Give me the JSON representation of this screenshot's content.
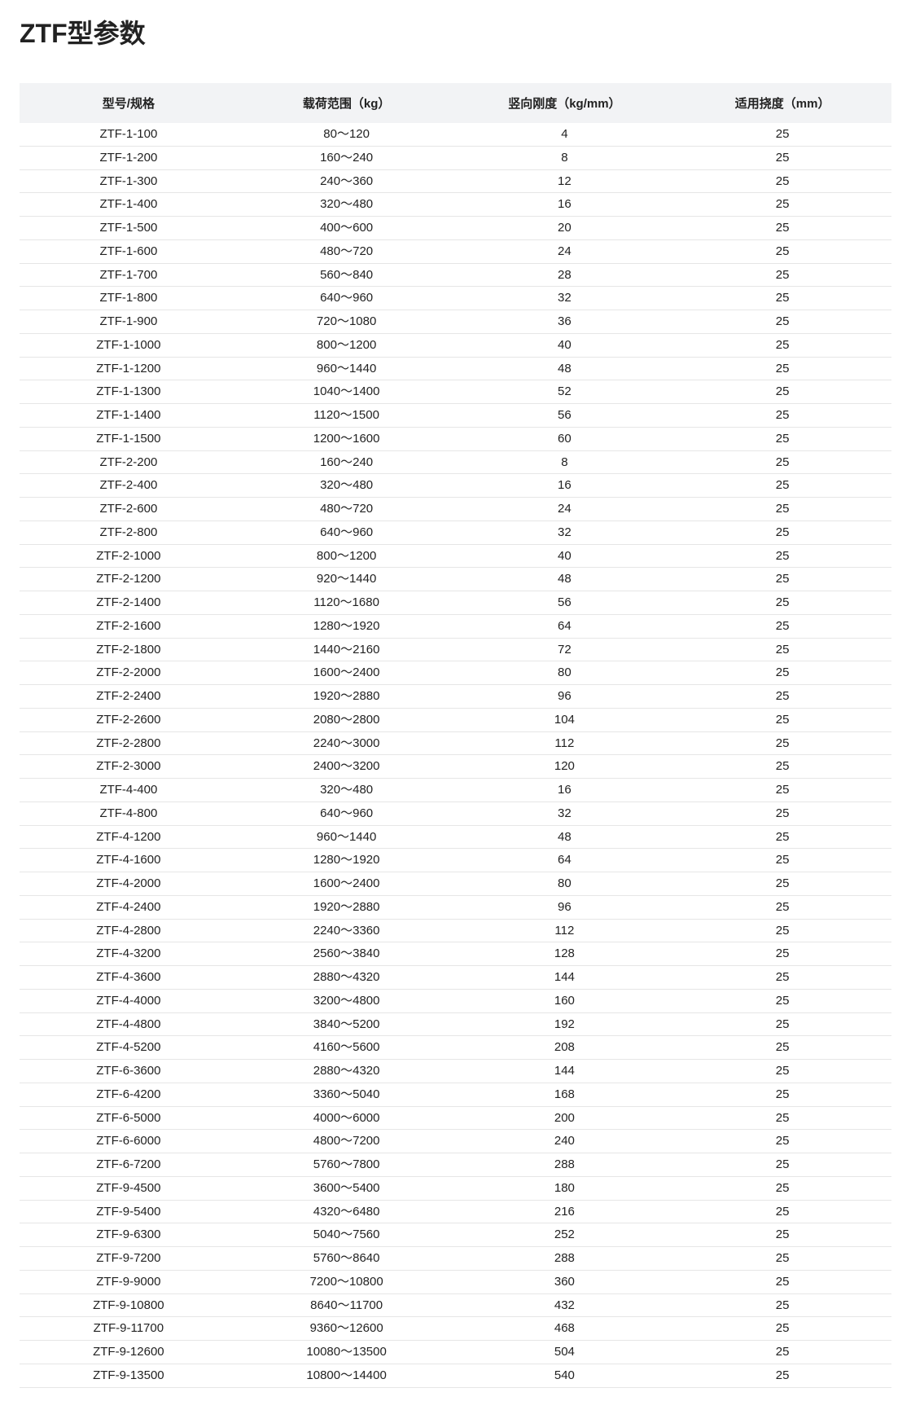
{
  "title": "ZTF型参数",
  "table": {
    "columns": [
      "型号/规格",
      "载荷范围（kg）",
      "竖向刚度（kg/mm）",
      "适用挠度（mm）"
    ],
    "rows": [
      [
        "ZTF-1-100",
        "80～120",
        "4",
        "25"
      ],
      [
        "ZTF-1-200",
        "160～240",
        "8",
        "25"
      ],
      [
        "ZTF-1-300",
        "240～360",
        "12",
        "25"
      ],
      [
        "ZTF-1-400",
        "320～480",
        "16",
        "25"
      ],
      [
        "ZTF-1-500",
        "400～600",
        "20",
        "25"
      ],
      [
        "ZTF-1-600",
        "480～720",
        "24",
        "25"
      ],
      [
        "ZTF-1-700",
        "560～840",
        "28",
        "25"
      ],
      [
        "ZTF-1-800",
        "640～960",
        "32",
        "25"
      ],
      [
        "ZTF-1-900",
        "720～1080",
        "36",
        "25"
      ],
      [
        "ZTF-1-1000",
        "800～1200",
        "40",
        "25"
      ],
      [
        "ZTF-1-1200",
        "960～1440",
        "48",
        "25"
      ],
      [
        "ZTF-1-1300",
        "1040～1400",
        "52",
        "25"
      ],
      [
        "ZTF-1-1400",
        "1120～1500",
        "56",
        "25"
      ],
      [
        "ZTF-1-1500",
        "1200～1600",
        "60",
        "25"
      ],
      [
        "ZTF-2-200",
        "160～240",
        "8",
        "25"
      ],
      [
        "ZTF-2-400",
        "320～480",
        "16",
        "25"
      ],
      [
        "ZTF-2-600",
        "480～720",
        "24",
        "25"
      ],
      [
        "ZTF-2-800",
        "640～960",
        "32",
        "25"
      ],
      [
        "ZTF-2-1000",
        "800～1200",
        "40",
        "25"
      ],
      [
        "ZTF-2-1200",
        "920～1440",
        "48",
        "25"
      ],
      [
        "ZTF-2-1400",
        "1120～1680",
        "56",
        "25"
      ],
      [
        "ZTF-2-1600",
        "1280～1920",
        "64",
        "25"
      ],
      [
        "ZTF-2-1800",
        "1440～2160",
        "72",
        "25"
      ],
      [
        "ZTF-2-2000",
        "1600～2400",
        "80",
        "25"
      ],
      [
        "ZTF-2-2400",
        "1920～2880",
        "96",
        "25"
      ],
      [
        "ZTF-2-2600",
        "2080～2800",
        "104",
        "25"
      ],
      [
        "ZTF-2-2800",
        "2240～3000",
        "112",
        "25"
      ],
      [
        "ZTF-2-3000",
        "2400～3200",
        "120",
        "25"
      ],
      [
        "ZTF-4-400",
        "320～480",
        "16",
        "25"
      ],
      [
        "ZTF-4-800",
        "640～960",
        "32",
        "25"
      ],
      [
        "ZTF-4-1200",
        "960～1440",
        "48",
        "25"
      ],
      [
        "ZTF-4-1600",
        "1280～1920",
        "64",
        "25"
      ],
      [
        "ZTF-4-2000",
        "1600～2400",
        "80",
        "25"
      ],
      [
        "ZTF-4-2400",
        "1920～2880",
        "96",
        "25"
      ],
      [
        "ZTF-4-2800",
        "2240～3360",
        "112",
        "25"
      ],
      [
        "ZTF-4-3200",
        "2560～3840",
        "128",
        "25"
      ],
      [
        "ZTF-4-3600",
        "2880～4320",
        "144",
        "25"
      ],
      [
        "ZTF-4-4000",
        "3200～4800",
        "160",
        "25"
      ],
      [
        "ZTF-4-4800",
        "3840～5200",
        "192",
        "25"
      ],
      [
        "ZTF-4-5200",
        "4160～5600",
        "208",
        "25"
      ],
      [
        "ZTF-6-3600",
        "2880～4320",
        "144",
        "25"
      ],
      [
        "ZTF-6-4200",
        "3360～5040",
        "168",
        "25"
      ],
      [
        "ZTF-6-5000",
        "4000～6000",
        "200",
        "25"
      ],
      [
        "ZTF-6-6000",
        "4800～7200",
        "240",
        "25"
      ],
      [
        "ZTF-6-7200",
        "5760～7800",
        "288",
        "25"
      ],
      [
        "ZTF-9-4500",
        "3600～5400",
        "180",
        "25"
      ],
      [
        "ZTF-9-5400",
        "4320～6480",
        "216",
        "25"
      ],
      [
        "ZTF-9-6300",
        "5040～7560",
        "252",
        "25"
      ],
      [
        "ZTF-9-7200",
        "5760～8640",
        "288",
        "25"
      ],
      [
        "ZTF-9-9000",
        "7200～10800",
        "360",
        "25"
      ],
      [
        "ZTF-9-10800",
        "8640～11700",
        "432",
        "25"
      ],
      [
        "ZTF-9-11700",
        "9360～12600",
        "468",
        "25"
      ],
      [
        "ZTF-9-12600",
        "10080～13500",
        "504",
        "25"
      ],
      [
        "ZTF-9-13500",
        "10800～14400",
        "540",
        "25"
      ]
    ]
  }
}
